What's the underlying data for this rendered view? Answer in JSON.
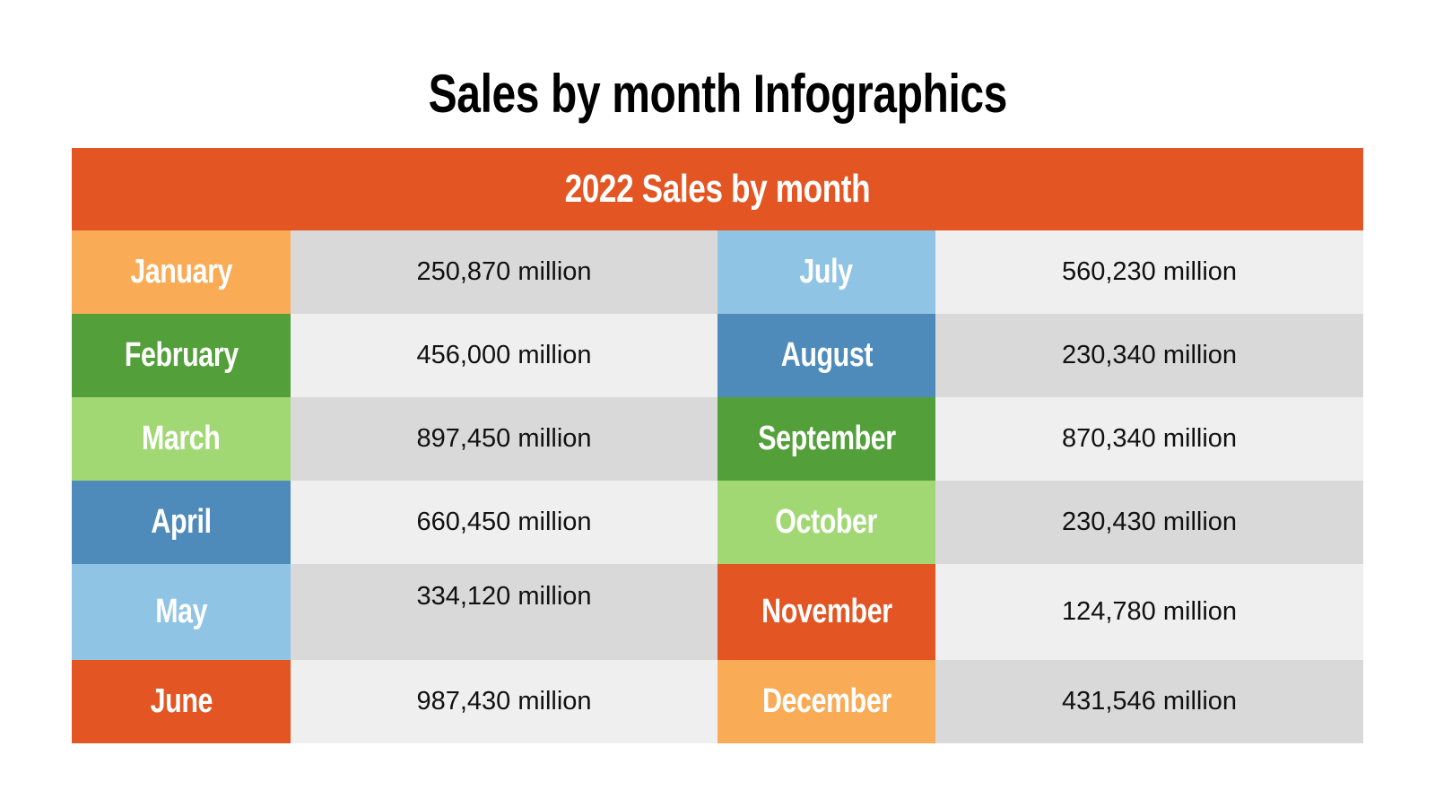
{
  "title": "Sales by month Infographics",
  "table": {
    "header": "2022 Sales by month",
    "rows": [
      {
        "left": {
          "month": "January",
          "value": "250,870 million",
          "color": "#f9ab56",
          "bg": "#d9d9d9"
        },
        "right": {
          "month": "July",
          "value": "560,230 million",
          "color": "#90c4e4",
          "bg": "#efefef"
        }
      },
      {
        "left": {
          "month": "February",
          "value": "456,000 million",
          "color": "#53a03a",
          "bg": "#efefef"
        },
        "right": {
          "month": "August",
          "value": "230,340 million",
          "color": "#4e8bbb",
          "bg": "#d9d9d9"
        }
      },
      {
        "left": {
          "month": "March",
          "value": "897,450 million",
          "color": "#a1d874",
          "bg": "#d9d9d9"
        },
        "right": {
          "month": "September",
          "value": "870,340 million",
          "color": "#53a03a",
          "bg": "#efefef"
        }
      },
      {
        "left": {
          "month": "April",
          "value": "660,450 million",
          "color": "#4e8bbb",
          "bg": "#efefef"
        },
        "right": {
          "month": "October",
          "value": "230,430 million",
          "color": "#a1d874",
          "bg": "#d9d9d9"
        }
      },
      {
        "left": {
          "month": "May",
          "value": "334,120 million",
          "color": "#90c4e4",
          "bg": "#d9d9d9"
        },
        "right": {
          "month": "November",
          "value": "124,780 million",
          "color": "#e35623",
          "bg": "#efefef"
        }
      },
      {
        "left": {
          "month": "June",
          "value": "987,430 million",
          "color": "#e35623",
          "bg": "#efefef"
        },
        "right": {
          "month": "December",
          "value": "431,546 million",
          "color": "#f9ab56",
          "bg": "#d9d9d9"
        }
      }
    ]
  },
  "colors": {
    "header": "#e35623"
  }
}
